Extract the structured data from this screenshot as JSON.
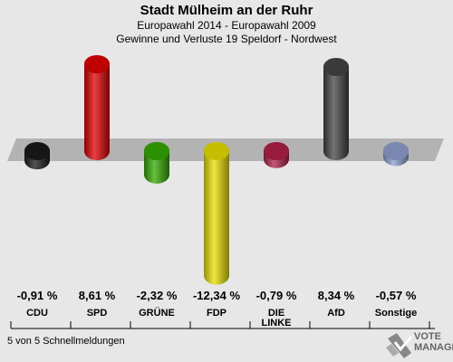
{
  "header": {
    "title": "Stadt Mülheim an der Ruhr",
    "subtitle1": "Europawahl 2014 - Europawahl 2009",
    "subtitle2": "Gewinne und Verluste 19 Speldorf - Nordwest"
  },
  "chart_data": {
    "type": "bar",
    "categories": [
      "CDU",
      "SPD",
      "GRÜNE",
      "FDP",
      "DIE LINKE",
      "AfD",
      "Sonstige"
    ],
    "values": [
      -0.91,
      8.61,
      -2.32,
      -12.34,
      -0.79,
      8.34,
      -0.57
    ],
    "value_labels": [
      "-0,91 %",
      "8,61 %",
      "-2,32 %",
      "-12,34 %",
      "-0,79 %",
      "8,34 %",
      "-0,57 %"
    ],
    "colors": [
      "#1a1a1a",
      "#e00000",
      "#33aa00",
      "#e8e000",
      "#b0204a",
      "#444444",
      "#8f9fcf"
    ]
  },
  "footer": {
    "status": "5 von 5 Schnellmeldungen"
  },
  "logo": {
    "line1": "VOTE",
    "line2": "MANAGER"
  }
}
